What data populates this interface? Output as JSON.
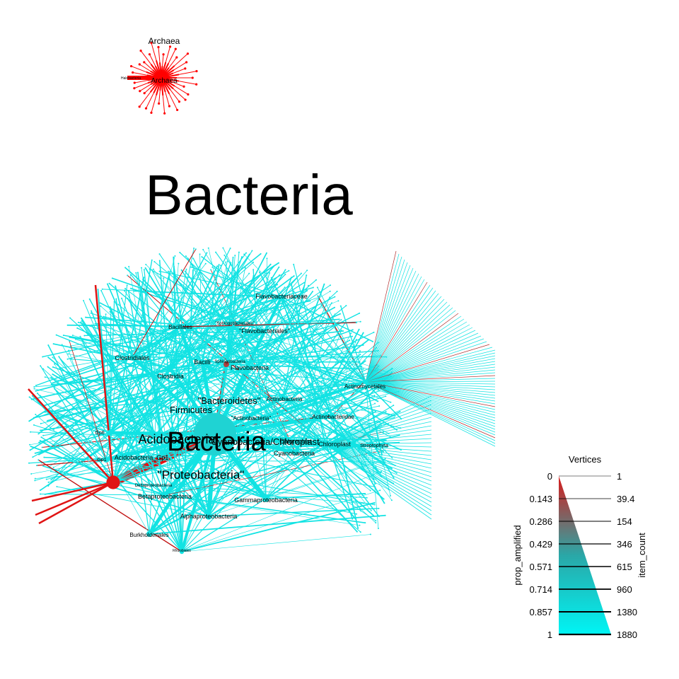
{
  "colors": {
    "amplified_low": "#00f5f5",
    "amplified_high": "#d81b1b",
    "mid": "#2aa7a7",
    "text": "#000000"
  },
  "trees": [
    {
      "name": "Archaea",
      "title": "Archaea",
      "color": "#ff0000",
      "nodes": [
        {
          "label": "Archaea",
          "size": "tiny"
        },
        {
          "label": "Halobacteria",
          "size": "tiny"
        }
      ]
    },
    {
      "name": "Bacteria",
      "title": "Bacteria",
      "nodes": [
        {
          "label": "Bacteria",
          "size": "xl"
        },
        {
          "label": "\"Proteobacteria\"",
          "size": "l"
        },
        {
          "label": "Acidobacteria",
          "size": "l"
        },
        {
          "label": "Cyanobacteria/Chloroplast",
          "size": "m"
        },
        {
          "label": "\"Bacteroidetes\"",
          "size": "m"
        },
        {
          "label": "Firmicutes",
          "size": "m"
        },
        {
          "label": "\"Actinobacteria\"",
          "size": "s"
        },
        {
          "label": "Actinobacteria",
          "size": "s"
        },
        {
          "label": "Actinobacteridae",
          "size": "s"
        },
        {
          "label": "Actinomycetales",
          "size": "s"
        },
        {
          "label": "Chloroplast",
          "size": "s"
        },
        {
          "label": "Chloroplast",
          "size": "s"
        },
        {
          "label": "Streptophyta",
          "size": "xs"
        },
        {
          "label": "Cyanobacteria",
          "size": "s"
        },
        {
          "label": "Flavobacteriaceae",
          "size": "s"
        },
        {
          "label": "\"Flavobacteriales\"",
          "size": "s"
        },
        {
          "label": "\"Sphingobacteriales\"",
          "size": "xs"
        },
        {
          "label": "Sphingobacteria",
          "size": "xs"
        },
        {
          "label": "Flavobacteria",
          "size": "s"
        },
        {
          "label": "Bacillales",
          "size": "s"
        },
        {
          "label": "Bacilli",
          "size": "s"
        },
        {
          "label": "Clostridiales",
          "size": "s"
        },
        {
          "label": "Clostridia",
          "size": "s"
        },
        {
          "label": "Gp6",
          "size": "xs"
        },
        {
          "label": "Gp1",
          "size": "xs"
        },
        {
          "label": "Acidobacteria_Gp1",
          "size": "s"
        },
        {
          "label": "Gammaproteobacteria",
          "size": "s"
        },
        {
          "label": "Betaproteobacteria",
          "size": "s"
        },
        {
          "label": "Alphaproteobacteria",
          "size": "s"
        },
        {
          "label": "Deltaproteobacteria",
          "size": "xs"
        },
        {
          "label": "Burkholderiales",
          "size": "s"
        },
        {
          "label": "Rhizobiales",
          "size": "xs"
        }
      ]
    }
  ],
  "legend": {
    "title": "Vertices",
    "left_axis_label": "prop_amplified",
    "right_axis_label": "item_count",
    "left_ticks": [
      "0",
      "0.143",
      "0.286",
      "0.429",
      "0.571",
      "0.714",
      "0.857",
      "1"
    ],
    "right_ticks": [
      "1",
      "39.4",
      "154",
      "346",
      "615",
      "960",
      "1380",
      "1880"
    ]
  }
}
